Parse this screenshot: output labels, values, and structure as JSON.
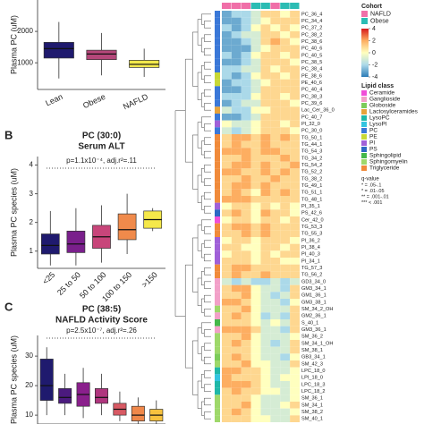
{
  "chart_data": [
    {
      "type": "box",
      "ylabel": "Plasma PC (uM)",
      "categories": [
        "Lean",
        "Obese",
        "NAFLD"
      ],
      "colors": [
        "#1f1a6e",
        "#b5477a",
        "#f2e84b"
      ],
      "boxes": [
        {
          "min": 500,
          "q1": 1150,
          "median": 1450,
          "q3": 1650,
          "max": 2300
        },
        {
          "min": 600,
          "q1": 1100,
          "median": 1280,
          "q3": 1400,
          "max": 1950
        },
        {
          "min": 550,
          "q1": 850,
          "median": 950,
          "q3": 1080,
          "max": 1450
        }
      ],
      "ylim": [
        150,
        3000
      ],
      "yticks": [
        1000,
        2000
      ]
    },
    {
      "type": "box",
      "panel": "B",
      "title": "PC (30:0)",
      "subtitle": "Serum ALT",
      "annotation": "p=1.1x10⁻⁴, adj.r²=.11",
      "ylabel": "Plasma PC species (uM)",
      "categories": [
        "<25",
        "25 to 50",
        "50 to 100",
        "100 to 150",
        ">150"
      ],
      "colors": [
        "#1f1a6e",
        "#7a1f8c",
        "#c8457a",
        "#f08a4b",
        "#f5e84a"
      ],
      "boxes": [
        {
          "min": 0.5,
          "q1": 0.9,
          "median": 1.2,
          "q3": 1.6,
          "max": 2.4
        },
        {
          "min": 0.5,
          "q1": 0.95,
          "median": 1.25,
          "q3": 1.7,
          "max": 2.5
        },
        {
          "min": 0.6,
          "q1": 1.1,
          "median": 1.5,
          "q3": 1.9,
          "max": 2.6
        },
        {
          "min": 0.9,
          "q1": 1.4,
          "median": 1.75,
          "q3": 2.3,
          "max": 3.0
        },
        {
          "min": 1.7,
          "q1": 1.8,
          "median": 2.1,
          "q3": 2.4,
          "max": 2.5
        }
      ],
      "ylim": [
        0.4,
        4.3
      ],
      "yticks": [
        1,
        2,
        3,
        4
      ]
    },
    {
      "type": "box",
      "panel": "C",
      "title": "PC (38:5)",
      "subtitle": "NAFLD Activity Score",
      "annotation": "p=2.5x10⁻⁷, adj.r²=.26",
      "ylabel": "Plasma PC species (uM)",
      "categories": [
        null,
        null,
        null,
        null,
        null,
        null,
        null
      ],
      "colors": [
        "#1f1a6e",
        "#4b1a7e",
        "#8a1f8c",
        "#b0357e",
        "#d85a64",
        "#f0884a",
        "#f7c23e"
      ],
      "boxes": [
        {
          "min": 10,
          "q1": 15,
          "median": 20,
          "q3": 29,
          "max": 33
        },
        {
          "min": 10,
          "q1": 14,
          "median": 16,
          "q3": 19,
          "max": 24
        },
        {
          "min": 9,
          "q1": 13,
          "median": 17,
          "q3": 21,
          "max": 26
        },
        {
          "min": 10,
          "q1": 14,
          "median": 16,
          "q3": 19,
          "max": 24
        },
        {
          "min": 8,
          "q1": 10,
          "median": 12,
          "q3": 14,
          "max": 18
        },
        {
          "min": 7,
          "q1": 8,
          "median": 10,
          "q3": 13,
          "max": 16
        },
        {
          "min": 7,
          "q1": 8,
          "median": 10,
          "q3": 12,
          "max": 15
        }
      ],
      "ylim": [
        7,
        37
      ],
      "yticks": [
        10,
        20,
        30
      ]
    },
    {
      "type": "heatmap",
      "rows": [
        "PC_36_4",
        "PC_34_4",
        "PC_37_2",
        "PC_38_2",
        "PC_38_6",
        "PC_40_6",
        "PC_40_5",
        "PC_38_5",
        "PC_38_4",
        "PE_38_6",
        "PE_40_6",
        "PC_40_4",
        "PC_38_3",
        "PC_39_6",
        "Lac_Cer_36_0",
        "PC_40_7",
        "PI_32_0",
        "PC_30_0",
        "TG_50_1",
        "TG_44_1",
        "TG_54_3",
        "TG_34_2",
        "TG_54_2",
        "TG_52_2",
        "TG_38_2",
        "TG_49_1",
        "TG_51_1",
        "TG_48_1",
        "PI_35_1",
        "PS_42_6",
        "Cer_42_0",
        "TG_53_3",
        "TG_55_3",
        "PI_36_2",
        "PI_38_4",
        "PI_40_3",
        "PI_34_1",
        "TG_57_3",
        "TG_56_2",
        "GD3_34_0",
        "GM3_34_1",
        "GM1_36_1",
        "GM3_38_1",
        "SM_34_2_OH",
        "GM2_36_1",
        "S_40_1",
        "GM3_36_1",
        "SM_36_2",
        "SM_34_1_OH",
        "SM_38_1",
        "GB3_34_1",
        "SM_42_3",
        "LPC_18_0",
        "LPI_18_0",
        "LPC_18_3",
        "LPC_18_2",
        "SM_36_1",
        "SM_34_1",
        "SM_38_2",
        "SM_40_1"
      ],
      "row_class": [
        6,
        6,
        6,
        6,
        6,
        6,
        6,
        6,
        6,
        7,
        7,
        6,
        6,
        6,
        3,
        6,
        8,
        6,
        12,
        12,
        12,
        12,
        12,
        12,
        12,
        12,
        12,
        12,
        8,
        9,
        0,
        12,
        12,
        8,
        8,
        8,
        8,
        12,
        12,
        1,
        1,
        1,
        1,
        11,
        1,
        10,
        1,
        11,
        11,
        11,
        2,
        11,
        4,
        5,
        4,
        4,
        11,
        11,
        11,
        11
      ],
      "column_cohort": [
        0,
        0,
        0,
        1,
        1,
        0,
        1,
        1
      ],
      "values": [
        [
          -3,
          -2,
          -2,
          -1,
          1,
          1,
          0,
          1
        ],
        [
          -3,
          -3,
          -2,
          -1,
          0,
          1,
          1,
          1
        ],
        [
          -2,
          -3,
          -2,
          0,
          1,
          0,
          1,
          0
        ],
        [
          -3,
          -2,
          -1,
          -1,
          1,
          1,
          0,
          1
        ],
        [
          -3,
          -3,
          -2,
          -1,
          1,
          2,
          1,
          0
        ],
        [
          -3,
          -3,
          -3,
          -1,
          0,
          1,
          1,
          1
        ],
        [
          -2,
          -3,
          -2,
          0,
          1,
          1,
          0,
          1
        ],
        [
          -3,
          -3,
          -2,
          -1,
          1,
          1,
          1,
          0
        ],
        [
          -2,
          -2,
          -1,
          -1,
          1,
          0,
          1,
          1
        ],
        [
          -2,
          -3,
          -2,
          0,
          1,
          1,
          0,
          1
        ],
        [
          -3,
          -2,
          -2,
          -1,
          0,
          1,
          1,
          1
        ],
        [
          -3,
          -3,
          -2,
          -1,
          1,
          1,
          1,
          1
        ],
        [
          -2,
          -2,
          -2,
          0,
          1,
          1,
          0,
          1
        ],
        [
          -3,
          -2,
          -1,
          -1,
          1,
          1,
          1,
          0
        ],
        [
          -1,
          -2,
          -2,
          0,
          0,
          1,
          1,
          1
        ],
        [
          -3,
          -3,
          -2,
          -1,
          1,
          1,
          1,
          1
        ],
        [
          0,
          -1,
          -1,
          0,
          1,
          1,
          0,
          1
        ],
        [
          -1,
          -2,
          -1,
          0,
          1,
          1,
          1,
          0
        ],
        [
          1,
          2,
          2,
          1,
          2,
          1,
          2,
          1
        ],
        [
          1,
          2,
          1,
          1,
          2,
          1,
          1,
          1
        ],
        [
          2,
          2,
          2,
          1,
          2,
          2,
          1,
          1
        ],
        [
          1,
          1,
          2,
          1,
          1,
          1,
          2,
          1
        ],
        [
          1,
          2,
          2,
          1,
          2,
          1,
          1,
          2
        ],
        [
          2,
          2,
          1,
          1,
          2,
          1,
          2,
          1
        ],
        [
          1,
          1,
          2,
          1,
          1,
          2,
          1,
          1
        ],
        [
          1,
          2,
          2,
          1,
          2,
          1,
          1,
          1
        ],
        [
          1,
          2,
          1,
          0,
          2,
          1,
          2,
          1
        ],
        [
          2,
          2,
          2,
          1,
          1,
          1,
          1,
          1
        ],
        [
          0,
          1,
          1,
          0,
          1,
          0,
          1,
          0
        ],
        [
          1,
          2,
          1,
          0,
          2,
          1,
          1,
          0
        ],
        [
          0,
          1,
          1,
          0,
          1,
          1,
          0,
          1
        ],
        [
          1,
          2,
          2,
          1,
          2,
          1,
          1,
          1
        ],
        [
          1,
          1,
          2,
          1,
          2,
          1,
          1,
          1
        ],
        [
          0,
          1,
          1,
          0,
          1,
          1,
          1,
          0
        ],
        [
          1,
          1,
          0,
          0,
          1,
          1,
          0,
          1
        ],
        [
          0,
          1,
          1,
          0,
          1,
          0,
          1,
          1
        ],
        [
          1,
          1,
          1,
          0,
          1,
          1,
          0,
          0
        ],
        [
          1,
          2,
          2,
          1,
          1,
          1,
          1,
          1
        ],
        [
          1,
          2,
          1,
          1,
          2,
          1,
          1,
          1
        ],
        [
          -1,
          -2,
          -1,
          -2,
          -2,
          -1,
          -2,
          -1
        ],
        [
          1,
          2,
          2,
          0,
          -1,
          -1,
          -2,
          1
        ],
        [
          1,
          1,
          2,
          0,
          -1,
          -2,
          -1,
          1
        ],
        [
          2,
          2,
          1,
          0,
          -1,
          -1,
          -2,
          0
        ],
        [
          1,
          1,
          2,
          0,
          -1,
          -1,
          -1,
          1
        ],
        [
          1,
          2,
          1,
          0,
          -2,
          -1,
          -2,
          1
        ],
        [
          1,
          1,
          1,
          0,
          -1,
          0,
          -1,
          1
        ],
        [
          2,
          2,
          2,
          1,
          -1,
          -1,
          -2,
          1
        ],
        [
          1,
          1,
          2,
          0,
          -1,
          -1,
          -1,
          0
        ],
        [
          1,
          2,
          1,
          0,
          -1,
          -2,
          -1,
          1
        ],
        [
          1,
          1,
          1,
          0,
          -1,
          -1,
          -1,
          1
        ],
        [
          1,
          2,
          1,
          0,
          -1,
          -1,
          -2,
          0
        ],
        [
          1,
          1,
          2,
          0,
          0,
          -1,
          -1,
          1
        ],
        [
          2,
          2,
          1,
          1,
          0,
          -1,
          -1,
          0
        ],
        [
          2,
          1,
          1,
          1,
          0,
          -1,
          0,
          0
        ],
        [
          2,
          2,
          2,
          1,
          0,
          -1,
          -1,
          0
        ],
        [
          1,
          2,
          1,
          1,
          0,
          0,
          -1,
          0
        ],
        [
          1,
          1,
          1,
          0,
          -1,
          -1,
          -1,
          0
        ],
        [
          1,
          1,
          2,
          0,
          -1,
          -1,
          0,
          1
        ],
        [
          1,
          2,
          1,
          0,
          -1,
          -1,
          -1,
          0
        ],
        [
          1,
          1,
          1,
          0,
          0,
          -1,
          -1,
          1
        ]
      ],
      "clim": [
        -4,
        4
      ],
      "colorbar_ticks": [
        4,
        2,
        0,
        -2,
        -4
      ],
      "cohort_legend": {
        "title": "Cohort",
        "labels": [
          "NAFLD",
          "Obese"
        ],
        "colors": [
          "#f06fa8",
          "#2cbcb4"
        ]
      },
      "class_legend": {
        "title": "Lipid class",
        "labels": [
          "Ceramide",
          "Ganglioside",
          "Globoside",
          "Lactosylceramides",
          "LysoPC",
          "LysoPI",
          "PC",
          "PE",
          "PI",
          "PS",
          "Sphingolipid",
          "Sphingomyelin",
          "Triglyceride"
        ],
        "colors": [
          "#f04fd8",
          "#f2a0c8",
          "#7ccc5a",
          "#e8a33a",
          "#1fb8a8",
          "#33c4e0",
          "#3a78d8",
          "#c8d836",
          "#a060d8",
          "#2d68c4",
          "#44b84a",
          "#9ed86a",
          "#f08a3a"
        ]
      },
      "significance": {
        "title": "q-value",
        "labels": [
          "* = .05-.1",
          "* = .01-.05",
          "** = .001-.01",
          "*** < .001"
        ]
      }
    }
  ]
}
